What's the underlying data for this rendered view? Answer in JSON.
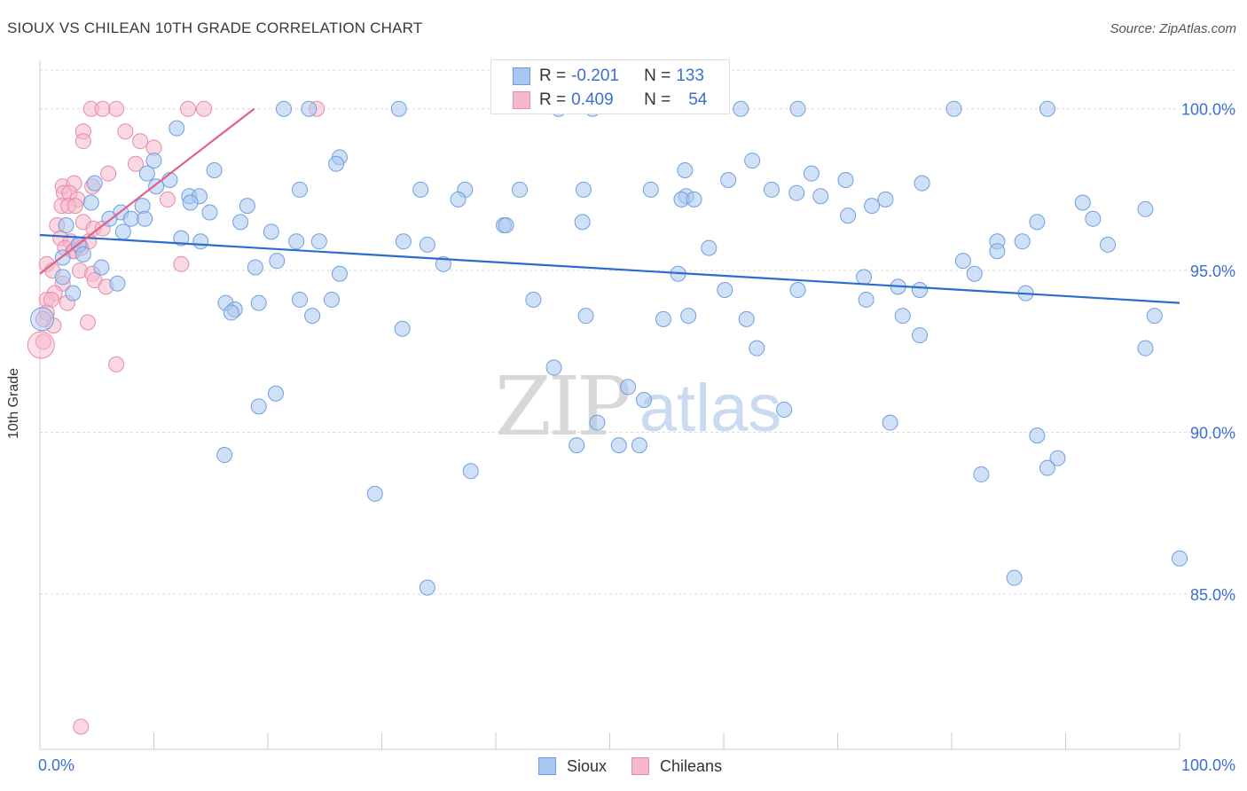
{
  "header": {
    "title": "SIOUX VS CHILEAN 10TH GRADE CORRELATION CHART",
    "source": "Source: ZipAtlas.com"
  },
  "watermark": {
    "zip": "ZIP",
    "atlas": "atlas"
  },
  "stats": {
    "sioux": {
      "r_label": "R =",
      "r_value": "-0.201",
      "n_label": "N =",
      "n_value": "133"
    },
    "chileans": {
      "r_label": "R =",
      "r_value": "0.409",
      "n_label": "N =",
      "n_value": "54"
    }
  },
  "legend": {
    "sioux": "Sioux",
    "chileans": "Chileans"
  },
  "colors": {
    "sioux_fill": "#a9c6f0",
    "sioux_stroke": "#6f9fe0",
    "sioux_line": "#2b6ccc",
    "chileans_fill": "#f6b8cb",
    "chileans_stroke": "#e98aa8",
    "chileans_line": "#e0608a",
    "tick_label": "#3b6fd1",
    "grid": "#d9d9d9"
  },
  "chart_data": {
    "type": "scatter",
    "title": "SIOUX VS CHILEAN 10TH GRADE CORRELATION CHART",
    "xlabel": "",
    "ylabel": "10th Grade",
    "xlim": [
      0,
      100
    ],
    "ylim": [
      80.2,
      101.5
    ],
    "x_tick_labels": [
      {
        "x": 0,
        "label": "0.0%"
      },
      {
        "x": 100,
        "label": "100.0%"
      }
    ],
    "y_ticks": [
      {
        "y": 100,
        "label": "100.0%"
      },
      {
        "y": 95,
        "label": "95.0%"
      },
      {
        "y": 90,
        "label": "90.0%"
      },
      {
        "y": 85,
        "label": "85.0%"
      }
    ],
    "grid": true,
    "legend_position": "bottom-center",
    "series": [
      {
        "name": "Sioux",
        "trend": {
          "x0": 0,
          "y0": 96.1,
          "x1": 100,
          "y1": 94.0
        },
        "points": [
          [
            21.4,
            100
          ],
          [
            23.6,
            100
          ],
          [
            31.5,
            100
          ],
          [
            45.5,
            100
          ],
          [
            48.5,
            100
          ],
          [
            61.5,
            100
          ],
          [
            66.5,
            100
          ],
          [
            80.2,
            100
          ],
          [
            88.4,
            100
          ],
          [
            12.0,
            99.4
          ],
          [
            26.3,
            98.5
          ],
          [
            10.0,
            98.4
          ],
          [
            26.0,
            98.3
          ],
          [
            62.5,
            98.4
          ],
          [
            9.4,
            98.0
          ],
          [
            15.3,
            98.1
          ],
          [
            56.6,
            98.1
          ],
          [
            67.7,
            98.0
          ],
          [
            60.4,
            97.8
          ],
          [
            4.8,
            97.7
          ],
          [
            11.4,
            97.8
          ],
          [
            10.2,
            97.6
          ],
          [
            22.8,
            97.5
          ],
          [
            33.4,
            97.5
          ],
          [
            37.3,
            97.5
          ],
          [
            42.1,
            97.5
          ],
          [
            47.7,
            97.5
          ],
          [
            53.6,
            97.5
          ],
          [
            56.7,
            97.3
          ],
          [
            64.2,
            97.5
          ],
          [
            70.7,
            97.8
          ],
          [
            77.4,
            97.7
          ],
          [
            66.4,
            97.4
          ],
          [
            74.2,
            97.2
          ],
          [
            13.1,
            97.3
          ],
          [
            14.0,
            97.3
          ],
          [
            36.7,
            97.2
          ],
          [
            56.3,
            97.2
          ],
          [
            57.4,
            97.2
          ],
          [
            68.5,
            97.3
          ],
          [
            4.5,
            97.1
          ],
          [
            9.0,
            97.0
          ],
          [
            13.2,
            97.1
          ],
          [
            18.2,
            97.0
          ],
          [
            73.0,
            97.0
          ],
          [
            91.5,
            97.1
          ],
          [
            7.1,
            96.8
          ],
          [
            14.9,
            96.8
          ],
          [
            97.0,
            96.9
          ],
          [
            6.1,
            96.6
          ],
          [
            8.0,
            96.6
          ],
          [
            9.2,
            96.6
          ],
          [
            17.6,
            96.5
          ],
          [
            40.7,
            96.4
          ],
          [
            40.9,
            96.4
          ],
          [
            47.6,
            96.5
          ],
          [
            70.9,
            96.7
          ],
          [
            87.5,
            96.5
          ],
          [
            92.4,
            96.6
          ],
          [
            2.3,
            96.4
          ],
          [
            7.3,
            96.2
          ],
          [
            12.4,
            96.0
          ],
          [
            14.1,
            95.9
          ],
          [
            20.3,
            96.2
          ],
          [
            22.5,
            95.9
          ],
          [
            24.5,
            95.9
          ],
          [
            31.9,
            95.9
          ],
          [
            34.0,
            95.8
          ],
          [
            58.7,
            95.7
          ],
          [
            84.0,
            95.9
          ],
          [
            86.2,
            95.9
          ],
          [
            93.7,
            95.8
          ],
          [
            3.4,
            95.8
          ],
          [
            2.0,
            95.4
          ],
          [
            3.8,
            95.5
          ],
          [
            20.8,
            95.3
          ],
          [
            35.4,
            95.2
          ],
          [
            5.4,
            95.1
          ],
          [
            18.9,
            95.1
          ],
          [
            26.3,
            94.9
          ],
          [
            56.0,
            94.9
          ],
          [
            72.3,
            94.8
          ],
          [
            81.0,
            95.3
          ],
          [
            84.0,
            95.6
          ],
          [
            82.0,
            94.9
          ],
          [
            2.0,
            94.8
          ],
          [
            6.8,
            94.6
          ],
          [
            60.1,
            94.4
          ],
          [
            75.3,
            94.5
          ],
          [
            77.2,
            94.4
          ],
          [
            2.9,
            94.3
          ],
          [
            16.3,
            94.0
          ],
          [
            17.1,
            93.8
          ],
          [
            19.2,
            94.0
          ],
          [
            22.8,
            94.1
          ],
          [
            25.6,
            94.1
          ],
          [
            72.5,
            94.1
          ],
          [
            66.5,
            94.4
          ],
          [
            43.3,
            94.1
          ],
          [
            86.5,
            94.3
          ],
          [
            16.8,
            93.7
          ],
          [
            23.9,
            93.6
          ],
          [
            47.9,
            93.6
          ],
          [
            54.7,
            93.5
          ],
          [
            56.9,
            93.6
          ],
          [
            62.0,
            93.5
          ],
          [
            75.7,
            93.6
          ],
          [
            97.8,
            93.6
          ],
          [
            31.8,
            93.2
          ],
          [
            77.2,
            93.0
          ],
          [
            62.9,
            92.6
          ],
          [
            97.0,
            92.6
          ],
          [
            45.1,
            92.0
          ],
          [
            51.6,
            91.4
          ],
          [
            20.7,
            91.2
          ],
          [
            53.0,
            91.0
          ],
          [
            19.2,
            90.8
          ],
          [
            65.3,
            90.7
          ],
          [
            48.9,
            90.3
          ],
          [
            74.6,
            90.3
          ],
          [
            87.5,
            89.9
          ],
          [
            47.1,
            89.6
          ],
          [
            50.8,
            89.6
          ],
          [
            52.6,
            89.6
          ],
          [
            16.2,
            89.3
          ],
          [
            89.3,
            89.2
          ],
          [
            88.4,
            88.9
          ],
          [
            37.8,
            88.8
          ],
          [
            82.6,
            88.7
          ],
          [
            29.4,
            88.1
          ],
          [
            100.0,
            86.1
          ],
          [
            85.5,
            85.5
          ],
          [
            34.0,
            85.2
          ]
        ]
      },
      {
        "name": "Chileans",
        "trend": {
          "x0": 0,
          "y0": 94.9,
          "x1": 18.8,
          "y1": 100.0
        },
        "points": [
          [
            4.5,
            100
          ],
          [
            5.5,
            100
          ],
          [
            6.7,
            100
          ],
          [
            13.0,
            100
          ],
          [
            14.4,
            100
          ],
          [
            24.3,
            100
          ],
          [
            3.8,
            99.3
          ],
          [
            3.8,
            99.0
          ],
          [
            7.5,
            99.3
          ],
          [
            8.8,
            99.0
          ],
          [
            10.0,
            98.8
          ],
          [
            8.4,
            98.3
          ],
          [
            6.0,
            98.0
          ],
          [
            2.0,
            97.6
          ],
          [
            3.0,
            97.7
          ],
          [
            4.6,
            97.6
          ],
          [
            2.1,
            97.4
          ],
          [
            2.6,
            97.4
          ],
          [
            3.3,
            97.2
          ],
          [
            11.2,
            97.2
          ],
          [
            1.9,
            97.0
          ],
          [
            2.5,
            97.0
          ],
          [
            3.1,
            97.0
          ],
          [
            1.5,
            96.4
          ],
          [
            3.8,
            96.5
          ],
          [
            4.7,
            96.3
          ],
          [
            5.5,
            96.3
          ],
          [
            1.8,
            96.0
          ],
          [
            2.7,
            95.9
          ],
          [
            3.5,
            95.8
          ],
          [
            4.3,
            95.9
          ],
          [
            2.2,
            95.7
          ],
          [
            2.9,
            95.6
          ],
          [
            3.0,
            95.6
          ],
          [
            3.6,
            95.7
          ],
          [
            12.4,
            95.2
          ],
          [
            0.6,
            95.2
          ],
          [
            1.1,
            95.0
          ],
          [
            3.5,
            95.0
          ],
          [
            4.6,
            94.9
          ],
          [
            4.8,
            94.7
          ],
          [
            2.0,
            94.6
          ],
          [
            5.8,
            94.5
          ],
          [
            1.3,
            94.3
          ],
          [
            0.6,
            94.1
          ],
          [
            1.0,
            94.1
          ],
          [
            2.4,
            94.0
          ],
          [
            0.6,
            93.7
          ],
          [
            1.2,
            93.3
          ],
          [
            4.2,
            93.4
          ],
          [
            0.3,
            93.5
          ],
          [
            0.3,
            92.8
          ],
          [
            6.7,
            92.1
          ],
          [
            3.6,
            80.9
          ]
        ]
      }
    ]
  }
}
